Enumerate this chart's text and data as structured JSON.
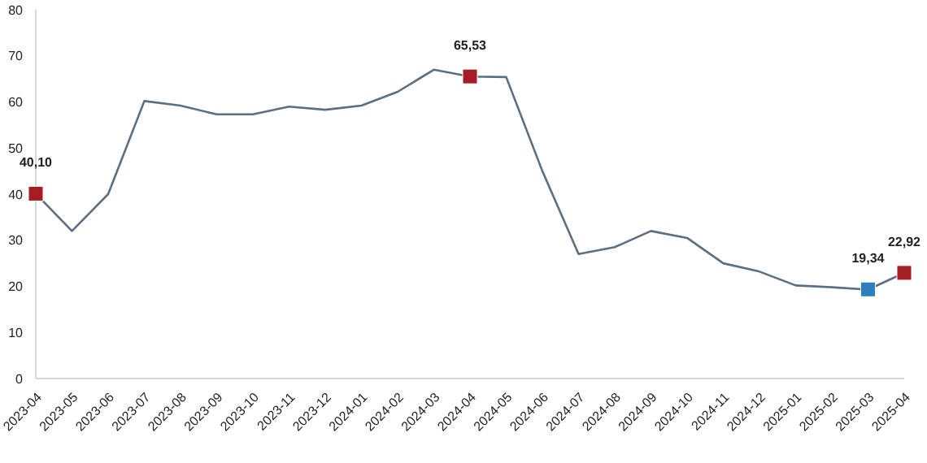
{
  "chart_data": {
    "type": "line",
    "categories": [
      "2023-04",
      "2023-05",
      "2023-06",
      "2023-07",
      "2023-08",
      "2023-09",
      "2023-10",
      "2023-11",
      "2023-12",
      "2024-01",
      "2024-02",
      "2024-03",
      "2024-04",
      "2024-05",
      "2024-06",
      "2024-07",
      "2024-08",
      "2024-09",
      "2024-10",
      "2024-11",
      "2024-12",
      "2025-01",
      "2025-02",
      "2025-03",
      "2025-04"
    ],
    "series": [
      {
        "color": "#5b6f80",
        "values": [
          40.1,
          32,
          40,
          60.2,
          59.2,
          57.3,
          57.3,
          59,
          58.3,
          59.2,
          62.2,
          67,
          65.5,
          65.4,
          45,
          27,
          28.5,
          32,
          30.5,
          25,
          23.2,
          20.2,
          19.8,
          19.3,
          22.9
        ]
      },
      {
        "type": "scatter",
        "marker": "square",
        "color": "#a51c24",
        "values": [
          40.1,
          null,
          null,
          null,
          null,
          null,
          null,
          null,
          null,
          null,
          null,
          null,
          65.53,
          null,
          null,
          null,
          null,
          null,
          null,
          null,
          null,
          null,
          null,
          null,
          22.92
        ],
        "value_labels": [
          "40,10",
          null,
          null,
          null,
          null,
          null,
          null,
          null,
          null,
          null,
          null,
          null,
          "65,53",
          null,
          null,
          null,
          null,
          null,
          null,
          null,
          null,
          null,
          null,
          null,
          "22,92"
        ]
      },
      {
        "type": "scatter",
        "marker": "square",
        "color": "#2e7dbf",
        "values": [
          null,
          null,
          null,
          null,
          null,
          null,
          null,
          null,
          null,
          null,
          null,
          null,
          null,
          null,
          null,
          null,
          null,
          null,
          null,
          null,
          null,
          null,
          null,
          19.34,
          null
        ],
        "value_labels": [
          null,
          null,
          null,
          null,
          null,
          null,
          null,
          null,
          null,
          null,
          null,
          null,
          null,
          null,
          null,
          null,
          null,
          null,
          null,
          null,
          null,
          null,
          null,
          "19,34",
          null
        ]
      }
    ],
    "ylim": [
      0,
      80
    ],
    "yticks": [
      0,
      10,
      20,
      30,
      40,
      50,
      60,
      70,
      80
    ],
    "grid": false,
    "legend": false,
    "line_style": "solid"
  }
}
